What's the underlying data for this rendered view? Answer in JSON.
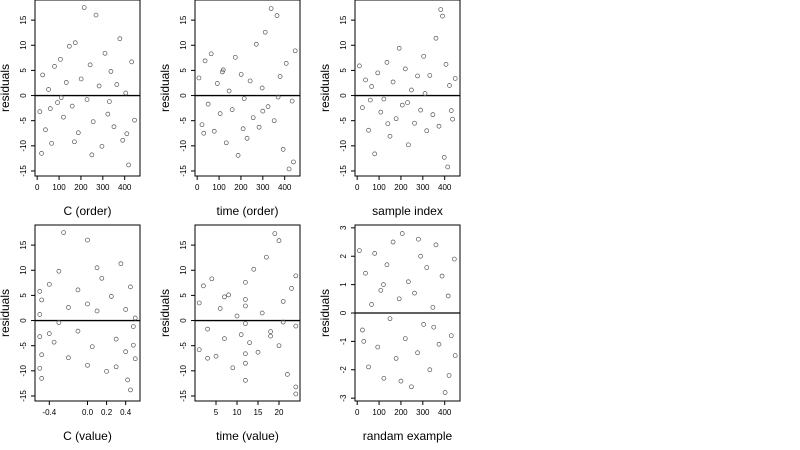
{
  "chart_data": [
    {
      "type": "scatter",
      "xlabel": "C (order)",
      "ylabel": "residuals",
      "xlim": [
        -10,
        470
      ],
      "ylim": [
        -16,
        19
      ],
      "xticks": [
        0,
        100,
        200,
        300,
        400
      ],
      "xtick_labels": [
        "0",
        "100",
        "200",
        "300",
        "400"
      ],
      "yticks": [
        -15,
        -10,
        -5,
        0,
        5,
        10,
        15
      ],
      "ytick_labels": [
        "-15",
        "-10",
        "-5",
        "0",
        "5",
        "10",
        "15"
      ],
      "hline": 0,
      "grid": false,
      "legend": "none",
      "points": [
        [
          12,
          -3.2
        ],
        [
          25,
          4.1
        ],
        [
          38,
          -6.8
        ],
        [
          52,
          1.2
        ],
        [
          66,
          -9.5
        ],
        [
          79,
          5.8
        ],
        [
          93,
          -1.4
        ],
        [
          106,
          7.2
        ],
        [
          120,
          -4.3
        ],
        [
          133,
          2.6
        ],
        [
          147,
          9.8
        ],
        [
          160,
          -2.1
        ],
        [
          174,
          10.5
        ],
        [
          188,
          -7.4
        ],
        [
          201,
          3.3
        ],
        [
          215,
          17.5
        ],
        [
          228,
          -0.8
        ],
        [
          242,
          6.1
        ],
        [
          256,
          -5.2
        ],
        [
          269,
          16.0
        ],
        [
          283,
          1.9
        ],
        [
          296,
          -10.1
        ],
        [
          310,
          8.4
        ],
        [
          323,
          -3.7
        ],
        [
          337,
          4.8
        ],
        [
          351,
          -6.2
        ],
        [
          364,
          2.2
        ],
        [
          378,
          11.3
        ],
        [
          391,
          -8.9
        ],
        [
          405,
          0.5
        ],
        [
          418,
          -13.8
        ],
        [
          432,
          6.7
        ],
        [
          445,
          -4.9
        ],
        [
          20,
          -11.5
        ],
        [
          60,
          -2.6
        ],
        [
          110,
          -0.4
        ],
        [
          170,
          -9.2
        ],
        [
          250,
          -11.8
        ],
        [
          330,
          -1.2
        ],
        [
          410,
          -7.6
        ]
      ]
    },
    {
      "type": "scatter",
      "xlabel": "time (order)",
      "ylabel": "residuals",
      "xlim": [
        -10,
        470
      ],
      "ylim": [
        -16,
        19
      ],
      "xticks": [
        0,
        100,
        200,
        300,
        400
      ],
      "xtick_labels": [
        "0",
        "100",
        "200",
        "300",
        "400"
      ],
      "yticks": [
        -15,
        -10,
        -5,
        0,
        5,
        10,
        15
      ],
      "ytick_labels": [
        "-15",
        "-10",
        "-5",
        "0",
        "5",
        "10",
        "15"
      ],
      "hline": 0,
      "grid": false,
      "legend": "none",
      "points": [
        [
          8,
          3.5
        ],
        [
          22,
          -5.8
        ],
        [
          36,
          6.9
        ],
        [
          50,
          -1.7
        ],
        [
          64,
          8.3
        ],
        [
          78,
          -7.1
        ],
        [
          92,
          2.4
        ],
        [
          105,
          -3.6
        ],
        [
          119,
          5.1
        ],
        [
          133,
          -9.4
        ],
        [
          146,
          0.9
        ],
        [
          160,
          -2.8
        ],
        [
          174,
          7.6
        ],
        [
          187,
          -11.9
        ],
        [
          201,
          4.2
        ],
        [
          215,
          -0.6
        ],
        [
          228,
          -8.5
        ],
        [
          242,
          2.9
        ],
        [
          256,
          -4.4
        ],
        [
          270,
          10.2
        ],
        [
          283,
          -6.3
        ],
        [
          297,
          1.5
        ],
        [
          311,
          12.6
        ],
        [
          324,
          -2.2
        ],
        [
          338,
          17.3
        ],
        [
          352,
          -5.0
        ],
        [
          365,
          15.9
        ],
        [
          379,
          3.8
        ],
        [
          393,
          -10.7
        ],
        [
          407,
          6.4
        ],
        [
          420,
          -14.6
        ],
        [
          434,
          -1.1
        ],
        [
          448,
          8.9
        ],
        [
          30,
          -7.5
        ],
        [
          115,
          4.7
        ],
        [
          210,
          -6.6
        ],
        [
          300,
          -3.1
        ],
        [
          370,
          -0.3
        ],
        [
          440,
          -13.2
        ]
      ]
    },
    {
      "type": "scatter",
      "xlabel": "sample index",
      "ylabel": "residuals",
      "xlim": [
        -10,
        470
      ],
      "ylim": [
        -16,
        19
      ],
      "xticks": [
        0,
        100,
        200,
        300,
        400
      ],
      "xtick_labels": [
        "0",
        "100",
        "200",
        "300",
        "400"
      ],
      "yticks": [
        -15,
        -10,
        -5,
        0,
        5,
        10,
        15
      ],
      "ytick_labels": [
        "-15",
        "-10",
        "-5",
        "0",
        "5",
        "10",
        "15"
      ],
      "hline": 0,
      "grid": false,
      "legend": "none",
      "points": [
        [
          10,
          5.9
        ],
        [
          24,
          -2.4
        ],
        [
          38,
          3.1
        ],
        [
          52,
          -6.9
        ],
        [
          66,
          1.8
        ],
        [
          80,
          -11.6
        ],
        [
          94,
          4.5
        ],
        [
          108,
          -3.3
        ],
        [
          122,
          -0.7
        ],
        [
          136,
          6.6
        ],
        [
          150,
          -8.1
        ],
        [
          164,
          2.7
        ],
        [
          178,
          -4.6
        ],
        [
          192,
          9.4
        ],
        [
          206,
          -1.9
        ],
        [
          220,
          5.3
        ],
        [
          234,
          -9.8
        ],
        [
          248,
          1.1
        ],
        [
          262,
          -5.5
        ],
        [
          276,
          3.9
        ],
        [
          290,
          -2.9
        ],
        [
          304,
          7.8
        ],
        [
          318,
          -7.0
        ],
        [
          332,
          4.0
        ],
        [
          346,
          -3.8
        ],
        [
          360,
          11.4
        ],
        [
          374,
          -6.1
        ],
        [
          382,
          17.1
        ],
        [
          390,
          15.8
        ],
        [
          398,
          -12.3
        ],
        [
          406,
          6.2
        ],
        [
          414,
          -14.2
        ],
        [
          422,
          2.0
        ],
        [
          436,
          -4.7
        ],
        [
          448,
          3.4
        ],
        [
          60,
          -0.9
        ],
        [
          140,
          -5.6
        ],
        [
          230,
          -1.4
        ],
        [
          310,
          0.4
        ],
        [
          430,
          -3.0
        ]
      ]
    },
    {
      "type": "scatter",
      "xlabel": "C (value)",
      "ylabel": "residuals",
      "xlim": [
        -0.55,
        0.55
      ],
      "ylim": [
        -16,
        19
      ],
      "xticks": [
        -0.4,
        0.0,
        0.2,
        0.4
      ],
      "xtick_labels": [
        "-0.4",
        "0.0",
        "0.2",
        "0.4"
      ],
      "yticks": [
        -15,
        -10,
        -5,
        0,
        5,
        10,
        15
      ],
      "ytick_labels": [
        "-15",
        "-10",
        "-5",
        "0",
        "5",
        "10",
        "15"
      ],
      "hline": 0,
      "grid": false,
      "legend": "none",
      "points": [
        [
          -0.5,
          -3.2
        ],
        [
          -0.5,
          5.8
        ],
        [
          -0.5,
          -9.5
        ],
        [
          -0.48,
          -11.5
        ],
        [
          -0.5,
          1.2
        ],
        [
          -0.48,
          -6.8
        ],
        [
          -0.48,
          4.1
        ],
        [
          -0.4,
          -2.6
        ],
        [
          -0.4,
          7.2
        ],
        [
          -0.35,
          -4.3
        ],
        [
          -0.3,
          9.8
        ],
        [
          -0.3,
          -0.4
        ],
        [
          -0.25,
          17.5
        ],
        [
          -0.2,
          2.6
        ],
        [
          -0.2,
          -7.4
        ],
        [
          -0.1,
          6.1
        ],
        [
          -0.1,
          -2.1
        ],
        [
          0.0,
          16.0
        ],
        [
          0.0,
          -8.9
        ],
        [
          0.0,
          3.3
        ],
        [
          0.05,
          -5.2
        ],
        [
          0.1,
          1.9
        ],
        [
          0.15,
          8.4
        ],
        [
          0.2,
          -10.1
        ],
        [
          0.25,
          4.8
        ],
        [
          0.3,
          -3.7
        ],
        [
          0.35,
          11.3
        ],
        [
          0.4,
          -6.2
        ],
        [
          0.4,
          2.2
        ],
        [
          0.45,
          -13.8
        ],
        [
          0.45,
          6.7
        ],
        [
          0.48,
          -4.9
        ],
        [
          0.5,
          -7.6
        ],
        [
          0.5,
          0.5
        ],
        [
          0.48,
          -1.2
        ],
        [
          0.42,
          -11.8
        ],
        [
          0.3,
          -9.2
        ],
        [
          0.1,
          10.5
        ]
      ]
    },
    {
      "type": "scatter",
      "xlabel": "time (value)",
      "ylabel": "residuals",
      "xlim": [
        0,
        25
      ],
      "ylim": [
        -16,
        19
      ],
      "xticks": [
        5,
        10,
        15,
        20
      ],
      "xtick_labels": [
        "5",
        "10",
        "15",
        "20"
      ],
      "yticks": [
        -15,
        -10,
        -5,
        0,
        5,
        10,
        15
      ],
      "ytick_labels": [
        "-15",
        "-10",
        "-5",
        "0",
        "5",
        "10",
        "15"
      ],
      "hline": 0,
      "grid": false,
      "legend": "none",
      "points": [
        [
          1,
          3.5
        ],
        [
          1,
          -5.8
        ],
        [
          2,
          6.9
        ],
        [
          3,
          -1.7
        ],
        [
          4,
          8.3
        ],
        [
          5,
          -7.1
        ],
        [
          6,
          2.4
        ],
        [
          7,
          -3.6
        ],
        [
          8,
          5.1
        ],
        [
          9,
          -9.4
        ],
        [
          10,
          0.9
        ],
        [
          11,
          -2.8
        ],
        [
          12,
          7.6
        ],
        [
          12,
          -11.9
        ],
        [
          12,
          4.2
        ],
        [
          12,
          -0.6
        ],
        [
          12,
          -8.5
        ],
        [
          12,
          2.9
        ],
        [
          13,
          -4.4
        ],
        [
          14,
          10.2
        ],
        [
          15,
          -6.3
        ],
        [
          16,
          1.5
        ],
        [
          17,
          12.6
        ],
        [
          18,
          -2.2
        ],
        [
          19,
          17.3
        ],
        [
          20,
          -5.0
        ],
        [
          20,
          15.9
        ],
        [
          21,
          3.8
        ],
        [
          22,
          -10.7
        ],
        [
          23,
          6.4
        ],
        [
          24,
          -14.6
        ],
        [
          24,
          -1.1
        ],
        [
          24,
          8.9
        ],
        [
          3,
          -7.5
        ],
        [
          7,
          4.7
        ],
        [
          12,
          -6.6
        ],
        [
          18,
          -3.1
        ],
        [
          21,
          -0.3
        ],
        [
          24,
          -13.2
        ]
      ]
    },
    {
      "type": "scatter",
      "xlabel": "randam example",
      "ylabel": "residuals",
      "xlim": [
        -10,
        470
      ],
      "ylim": [
        -3.1,
        3.1
      ],
      "xticks": [
        0,
        100,
        200,
        300,
        400
      ],
      "xtick_labels": [
        "0",
        "100",
        "200",
        "300",
        "400"
      ],
      "yticks": [
        -3,
        -2,
        -1,
        0,
        1,
        2,
        3
      ],
      "ytick_labels": [
        "-3",
        "-2",
        "-1",
        "0",
        "1",
        "2",
        "3"
      ],
      "hline": 0,
      "grid": false,
      "legend": "none",
      "points": [
        [
          10,
          2.2
        ],
        [
          24,
          -0.6
        ],
        [
          38,
          1.4
        ],
        [
          52,
          -1.9
        ],
        [
          66,
          0.3
        ],
        [
          80,
          2.1
        ],
        [
          94,
          -1.2
        ],
        [
          108,
          0.8
        ],
        [
          122,
          -2.3
        ],
        [
          136,
          1.7
        ],
        [
          150,
          -0.2
        ],
        [
          164,
          2.5
        ],
        [
          178,
          -1.6
        ],
        [
          192,
          0.5
        ],
        [
          206,
          2.8
        ],
        [
          220,
          -0.9
        ],
        [
          234,
          1.1
        ],
        [
          248,
          -2.6
        ],
        [
          262,
          0.7
        ],
        [
          276,
          -1.4
        ],
        [
          290,
          2.0
        ],
        [
          304,
          -0.4
        ],
        [
          318,
          1.6
        ],
        [
          332,
          -2.0
        ],
        [
          346,
          0.2
        ],
        [
          360,
          2.4
        ],
        [
          374,
          -1.1
        ],
        [
          388,
          1.3
        ],
        [
          402,
          -2.8
        ],
        [
          416,
          0.6
        ],
        [
          430,
          -0.8
        ],
        [
          444,
          1.9
        ],
        [
          448,
          -1.5
        ],
        [
          30,
          -1.0
        ],
        [
          120,
          1.0
        ],
        [
          200,
          -2.4
        ],
        [
          280,
          2.6
        ],
        [
          350,
          -0.5
        ],
        [
          420,
          -2.2
        ]
      ]
    }
  ]
}
